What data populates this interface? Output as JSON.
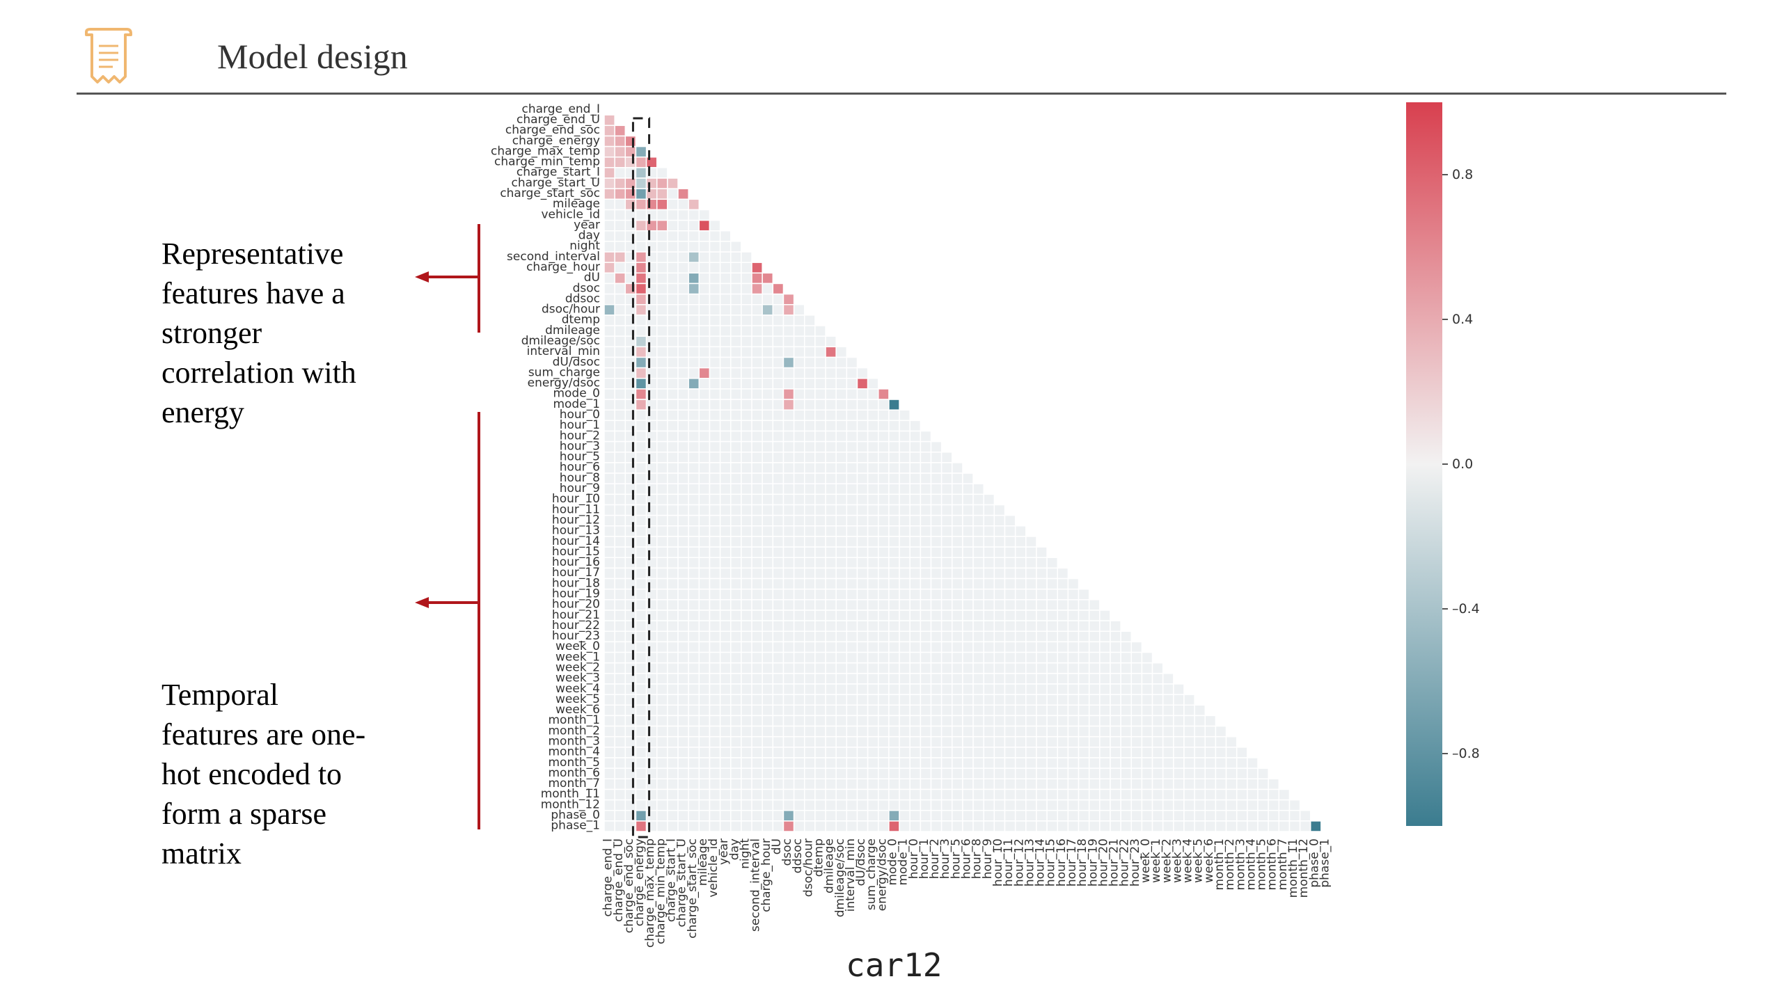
{
  "header": {
    "title": "Model design",
    "icon": "document-scroll-icon",
    "accent_color": "#f0b770"
  },
  "annotations": {
    "representative": {
      "lines": [
        "Representative",
        "features have a",
        "stronger",
        "correlation with",
        "energy"
      ]
    },
    "temporal": {
      "lines": [
        "Temporal",
        "features are one-",
        "hot encoded to",
        "form a sparse",
        "matrix"
      ]
    },
    "arrow_color": "#b0161b"
  },
  "caption": "car12",
  "chart_data": {
    "type": "heatmap",
    "subtype": "lower-triangle correlation matrix",
    "labels": [
      "charge_end_I",
      "charge_end_U",
      "charge_end_soc",
      "charge_energy",
      "charge_max_temp",
      "charge_min_temp",
      "charge_start_I",
      "charge_start_U",
      "charge_start_soc",
      "mileage",
      "vehicle_id",
      "year",
      "day",
      "night",
      "second_interval",
      "charge_hour",
      "dU",
      "dsoc",
      "ddsoc",
      "dsoc/hour",
      "dtemp",
      "dmileage",
      "dmileage/soc",
      "interval_min",
      "dU/dsoc",
      "sum_charge",
      "energy/dsoc",
      "mode_0",
      "mode_1",
      "hour_0",
      "hour_1",
      "hour_2",
      "hour_3",
      "hour_5",
      "hour_6",
      "hour_8",
      "hour_9",
      "hour_10",
      "hour_11",
      "hour_12",
      "hour_13",
      "hour_14",
      "hour_15",
      "hour_16",
      "hour_17",
      "hour_18",
      "hour_19",
      "hour_20",
      "hour_21",
      "hour_22",
      "hour_23",
      "week_0",
      "week_1",
      "week_2",
      "week_3",
      "week_4",
      "week_5",
      "week_6",
      "month_1",
      "month_2",
      "month_3",
      "month_4",
      "month_5",
      "month_6",
      "month_7",
      "month_11",
      "month_12",
      "phase_0",
      "phase_1"
    ],
    "x_labels_note": "x-axis shows the same labels as the y-axis, rotated",
    "value_range": [
      -1,
      1
    ],
    "colorbar": {
      "ticks": [
        0.8,
        0.4,
        0.0,
        -0.4,
        -0.8
      ],
      "tick_labels": [
        "0.8",
        "0.4",
        "0.0",
        "–0.4",
        "–0.8"
      ],
      "colors": {
        "positive": "#d8404f",
        "zero": "#f2f2f2",
        "negative": "#3b7c8f"
      }
    },
    "highlight": {
      "column": "charge_energy",
      "style": "dashed box"
    },
    "cells": [
      {
        "row": "charge_end_U",
        "col": "charge_end_I",
        "value": 0.3
      },
      {
        "row": "charge_end_soc",
        "col": "charge_end_I",
        "value": 0.3
      },
      {
        "row": "charge_end_soc",
        "col": "charge_end_U",
        "value": 0.5
      },
      {
        "row": "charge_energy",
        "col": "charge_end_I",
        "value": 0.3
      },
      {
        "row": "charge_energy",
        "col": "charge_end_U",
        "value": 0.4
      },
      {
        "row": "charge_energy",
        "col": "charge_end_soc",
        "value": 0.6
      },
      {
        "row": "charge_max_temp",
        "col": "charge_end_I",
        "value": 0.2
      },
      {
        "row": "charge_max_temp",
        "col": "charge_end_U",
        "value": 0.3
      },
      {
        "row": "charge_max_temp",
        "col": "charge_end_soc",
        "value": 0.4
      },
      {
        "row": "charge_max_temp",
        "col": "charge_energy",
        "value": -0.6
      },
      {
        "row": "charge_min_temp",
        "col": "charge_end_I",
        "value": 0.3
      },
      {
        "row": "charge_min_temp",
        "col": "charge_end_U",
        "value": 0.3
      },
      {
        "row": "charge_min_temp",
        "col": "charge_end_soc",
        "value": 0.2
      },
      {
        "row": "charge_min_temp",
        "col": "charge_energy",
        "value": 0.4
      },
      {
        "row": "charge_min_temp",
        "col": "charge_max_temp",
        "value": 0.8
      },
      {
        "row": "charge_start_I",
        "col": "charge_end_I",
        "value": 0.3
      },
      {
        "row": "charge_start_I",
        "col": "charge_energy",
        "value": -0.4
      },
      {
        "row": "charge_start_U",
        "col": "charge_end_I",
        "value": 0.2
      },
      {
        "row": "charge_start_U",
        "col": "charge_end_U",
        "value": 0.3
      },
      {
        "row": "charge_start_U",
        "col": "charge_end_soc",
        "value": 0.4
      },
      {
        "row": "charge_start_U",
        "col": "charge_energy",
        "value": -0.3
      },
      {
        "row": "charge_start_U",
        "col": "charge_max_temp",
        "value": 0.3
      },
      {
        "row": "charge_start_U",
        "col": "charge_min_temp",
        "value": 0.4
      },
      {
        "row": "charge_start_U",
        "col": "charge_start_I",
        "value": 0.3
      },
      {
        "row": "charge_start_soc",
        "col": "charge_end_I",
        "value": 0.3
      },
      {
        "row": "charge_start_soc",
        "col": "charge_end_U",
        "value": 0.4
      },
      {
        "row": "charge_start_soc",
        "col": "charge_end_soc",
        "value": 0.5
      },
      {
        "row": "charge_start_soc",
        "col": "charge_energy",
        "value": -0.7
      },
      {
        "row": "charge_start_soc",
        "col": "charge_max_temp",
        "value": 0.3
      },
      {
        "row": "charge_start_soc",
        "col": "charge_min_temp",
        "value": 0.3
      },
      {
        "row": "charge_start_soc",
        "col": "charge_start_U",
        "value": 0.6
      },
      {
        "row": "mileage",
        "col": "charge_end_soc",
        "value": 0.3
      },
      {
        "row": "mileage",
        "col": "charge_energy",
        "value": 0.4
      },
      {
        "row": "mileage",
        "col": "charge_max_temp",
        "value": 0.6
      },
      {
        "row": "mileage",
        "col": "charge_min_temp",
        "value": 0.7
      },
      {
        "row": "mileage",
        "col": "charge_start_soc",
        "value": 0.3
      },
      {
        "row": "year",
        "col": "charge_energy",
        "value": 0.3
      },
      {
        "row": "year",
        "col": "charge_max_temp",
        "value": 0.5
      },
      {
        "row": "year",
        "col": "charge_min_temp",
        "value": 0.5
      },
      {
        "row": "year",
        "col": "mileage",
        "value": 0.9
      },
      {
        "row": "second_interval",
        "col": "charge_end_I",
        "value": 0.3
      },
      {
        "row": "second_interval",
        "col": "charge_end_U",
        "value": 0.3
      },
      {
        "row": "second_interval",
        "col": "charge_energy",
        "value": 0.5
      },
      {
        "row": "second_interval",
        "col": "charge_start_soc",
        "value": -0.4
      },
      {
        "row": "charge_hour",
        "col": "charge_end_I",
        "value": 0.3
      },
      {
        "row": "charge_hour",
        "col": "charge_energy",
        "value": 0.6
      },
      {
        "row": "charge_hour",
        "col": "second_interval",
        "value": 0.8
      },
      {
        "row": "dU",
        "col": "charge_end_U",
        "value": 0.4
      },
      {
        "row": "dU",
        "col": "charge_energy",
        "value": 0.7
      },
      {
        "row": "dU",
        "col": "charge_start_soc",
        "value": -0.6
      },
      {
        "row": "dU",
        "col": "second_interval",
        "value": 0.6
      },
      {
        "row": "dU",
        "col": "charge_hour",
        "value": 0.6
      },
      {
        "row": "dsoc",
        "col": "charge_end_soc",
        "value": 0.4
      },
      {
        "row": "dsoc",
        "col": "charge_energy",
        "value": 0.8
      },
      {
        "row": "dsoc",
        "col": "charge_start_soc",
        "value": -0.5
      },
      {
        "row": "dsoc",
        "col": "second_interval",
        "value": 0.5
      },
      {
        "row": "dsoc",
        "col": "dU",
        "value": 0.6
      },
      {
        "row": "ddsoc",
        "col": "charge_energy",
        "value": 0.4
      },
      {
        "row": "ddsoc",
        "col": "dsoc",
        "value": 0.5
      },
      {
        "row": "dsoc/hour",
        "col": "charge_end_I",
        "value": -0.5
      },
      {
        "row": "dsoc/hour",
        "col": "charge_energy",
        "value": 0.3
      },
      {
        "row": "dsoc/hour",
        "col": "charge_hour",
        "value": -0.4
      },
      {
        "row": "dsoc/hour",
        "col": "dsoc",
        "value": 0.4
      },
      {
        "row": "dmileage/soc",
        "col": "charge_energy",
        "value": -0.3
      },
      {
        "row": "interval_min",
        "col": "charge_energy",
        "value": 0.3
      },
      {
        "row": "interval_min",
        "col": "dmileage",
        "value": 0.7
      },
      {
        "row": "dU/dsoc",
        "col": "charge_energy",
        "value": -0.6
      },
      {
        "row": "dU/dsoc",
        "col": "dsoc",
        "value": -0.5
      },
      {
        "row": "sum_charge",
        "col": "charge_energy",
        "value": 0.3
      },
      {
        "row": "sum_charge",
        "col": "mileage",
        "value": 0.6
      },
      {
        "row": "energy/dsoc",
        "col": "charge_energy",
        "value": -0.8
      },
      {
        "row": "energy/dsoc",
        "col": "charge_start_soc",
        "value": -0.6
      },
      {
        "row": "energy/dsoc",
        "col": "dU/dsoc",
        "value": 0.8
      },
      {
        "row": "mode_0",
        "col": "charge_energy",
        "value": 0.6
      },
      {
        "row": "mode_0",
        "col": "dsoc",
        "value": 0.5
      },
      {
        "row": "mode_0",
        "col": "energy/dsoc",
        "value": 0.6
      },
      {
        "row": "mode_1",
        "col": "charge_energy",
        "value": 0.4
      },
      {
        "row": "mode_1",
        "col": "dsoc",
        "value": 0.4
      },
      {
        "row": "mode_1",
        "col": "mode_0",
        "value": -1.0
      },
      {
        "row": "phase_0",
        "col": "charge_energy",
        "value": -0.7
      },
      {
        "row": "phase_0",
        "col": "dsoc",
        "value": -0.6
      },
      {
        "row": "phase_0",
        "col": "mode_0",
        "value": -0.6
      },
      {
        "row": "phase_1",
        "col": "charge_energy",
        "value": 0.7
      },
      {
        "row": "phase_1",
        "col": "dsoc",
        "value": 0.6
      },
      {
        "row": "phase_1",
        "col": "mode_0",
        "value": 0.8
      },
      {
        "row": "phase_1",
        "col": "phase_0",
        "value": -1.0
      }
    ]
  }
}
